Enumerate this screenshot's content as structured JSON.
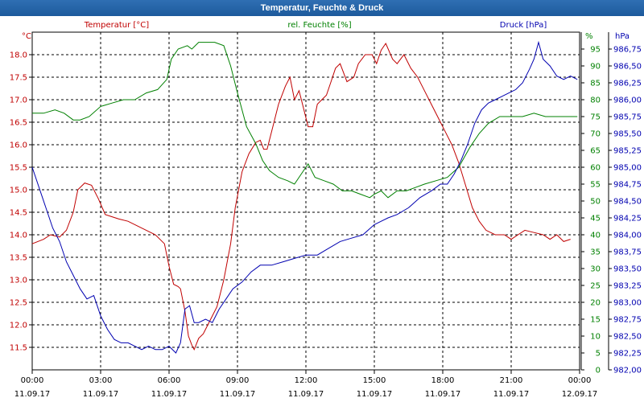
{
  "window": {
    "title": "Temperatur, Feuchte & Druck"
  },
  "chart_data": {
    "type": "line",
    "title": "Temperatur, Feuchte & Druck",
    "legend": [
      {
        "name": "Temperatur [°C]",
        "color": "#c00000"
      },
      {
        "name": "rel. Feuchte [%]",
        "color": "#008000"
      },
      {
        "name": "Druck [hPa]",
        "color": "#0000b0"
      }
    ],
    "grid": true,
    "x": {
      "range": [
        0,
        24
      ],
      "ticks": [
        0,
        3,
        6,
        9,
        12,
        15,
        18,
        21,
        24
      ],
      "time_labels": [
        "00:00",
        "03:00",
        "06:00",
        "09:00",
        "12:00",
        "15:00",
        "18:00",
        "21:00",
        "00:00"
      ],
      "date_labels": [
        "11.09.17",
        "11.09.17",
        "11.09.17",
        "11.09.17",
        "11.09.17",
        "11.09.17",
        "11.09.17",
        "11.09.17",
        "12.09.17"
      ]
    },
    "axes": {
      "temperature": {
        "unit": "°C",
        "color": "#c00000",
        "range": [
          11.0,
          18.5
        ],
        "ticks": [
          "11.5",
          "12.0",
          "12.5",
          "13.0",
          "13.5",
          "14.0",
          "14.5",
          "15.0",
          "15.5",
          "16.0",
          "16.5",
          "17.0",
          "17.5",
          "18.0"
        ]
      },
      "humidity": {
        "unit": "%",
        "color": "#008000",
        "range": [
          0,
          100
        ],
        "ticks": [
          "0",
          "5",
          "10",
          "15",
          "20",
          "25",
          "30",
          "35",
          "40",
          "45",
          "50",
          "55",
          "60",
          "65",
          "70",
          "75",
          "80",
          "85",
          "90",
          "95"
        ]
      },
      "pressure": {
        "unit": "hPa",
        "color": "#0000b0",
        "range": [
          982.0,
          987.0
        ],
        "ticks": [
          "982,00",
          "982,25",
          "982,50",
          "982,75",
          "983,00",
          "983,25",
          "983,50",
          "983,75",
          "984,00",
          "984,25",
          "984,50",
          "984,75",
          "985,00",
          "985,25",
          "985,50",
          "985,75",
          "986,00",
          "986,25",
          "986,50",
          "986,75"
        ]
      }
    },
    "series": [
      {
        "name": "Temperatur [°C]",
        "axis": "temperature",
        "color": "#c00000",
        "points": [
          [
            0,
            13.8
          ],
          [
            0.5,
            13.9
          ],
          [
            0.8,
            14.0
          ],
          [
            1.2,
            13.95
          ],
          [
            1.5,
            14.1
          ],
          [
            1.8,
            14.5
          ],
          [
            2.0,
            15.0
          ],
          [
            2.3,
            15.15
          ],
          [
            2.6,
            15.1
          ],
          [
            2.9,
            14.8
          ],
          [
            3.2,
            14.45
          ],
          [
            3.5,
            14.4
          ],
          [
            3.8,
            14.35
          ],
          [
            4.2,
            14.3
          ],
          [
            4.6,
            14.2
          ],
          [
            5.0,
            14.1
          ],
          [
            5.4,
            14.0
          ],
          [
            5.8,
            13.8
          ],
          [
            6.0,
            13.3
          ],
          [
            6.2,
            12.9
          ],
          [
            6.4,
            12.85
          ],
          [
            6.5,
            12.8
          ],
          [
            6.7,
            12.3
          ],
          [
            6.85,
            11.75
          ],
          [
            7.0,
            11.55
          ],
          [
            7.1,
            11.45
          ],
          [
            7.3,
            11.7
          ],
          [
            7.5,
            11.8
          ],
          [
            7.8,
            12.1
          ],
          [
            8.1,
            12.4
          ],
          [
            8.4,
            13.0
          ],
          [
            8.7,
            13.8
          ],
          [
            8.9,
            14.6
          ],
          [
            9.2,
            15.4
          ],
          [
            9.5,
            15.8
          ],
          [
            9.8,
            16.05
          ],
          [
            10.0,
            16.1
          ],
          [
            10.15,
            15.9
          ],
          [
            10.3,
            15.9
          ],
          [
            10.5,
            16.3
          ],
          [
            10.8,
            16.9
          ],
          [
            11.1,
            17.3
          ],
          [
            11.3,
            17.5
          ],
          [
            11.5,
            17.0
          ],
          [
            11.7,
            17.2
          ],
          [
            11.9,
            16.8
          ],
          [
            12.1,
            16.4
          ],
          [
            12.3,
            16.4
          ],
          [
            12.5,
            16.9
          ],
          [
            12.7,
            17.0
          ],
          [
            12.9,
            17.1
          ],
          [
            13.1,
            17.4
          ],
          [
            13.3,
            17.7
          ],
          [
            13.5,
            17.8
          ],
          [
            13.8,
            17.4
          ],
          [
            14.1,
            17.5
          ],
          [
            14.3,
            17.8
          ],
          [
            14.6,
            18.0
          ],
          [
            14.9,
            18.0
          ],
          [
            15.1,
            17.8
          ],
          [
            15.3,
            18.1
          ],
          [
            15.5,
            18.25
          ],
          [
            15.8,
            17.9
          ],
          [
            16.0,
            17.8
          ],
          [
            16.3,
            18.0
          ],
          [
            16.6,
            17.7
          ],
          [
            16.9,
            17.5
          ],
          [
            17.2,
            17.2
          ],
          [
            17.5,
            16.9
          ],
          [
            17.8,
            16.6
          ],
          [
            18.1,
            16.3
          ],
          [
            18.4,
            16.0
          ],
          [
            18.7,
            15.6
          ],
          [
            19.0,
            15.1
          ],
          [
            19.3,
            14.6
          ],
          [
            19.6,
            14.3
          ],
          [
            19.9,
            14.1
          ],
          [
            20.3,
            14.0
          ],
          [
            20.7,
            14.0
          ],
          [
            21.0,
            13.9
          ],
          [
            21.3,
            14.0
          ],
          [
            21.6,
            14.1
          ],
          [
            22.0,
            14.05
          ],
          [
            22.4,
            14.0
          ],
          [
            22.7,
            13.9
          ],
          [
            23.0,
            14.0
          ],
          [
            23.3,
            13.85
          ],
          [
            23.6,
            13.9
          ]
        ]
      },
      {
        "name": "rel. Feuchte [%]",
        "axis": "humidity",
        "color": "#008000",
        "points": [
          [
            0,
            76
          ],
          [
            0.5,
            76
          ],
          [
            1.0,
            77
          ],
          [
            1.4,
            76
          ],
          [
            1.8,
            74
          ],
          [
            2.1,
            74
          ],
          [
            2.5,
            75
          ],
          [
            3.0,
            78
          ],
          [
            3.5,
            79
          ],
          [
            4.0,
            80
          ],
          [
            4.5,
            80
          ],
          [
            5.0,
            82
          ],
          [
            5.5,
            83
          ],
          [
            5.9,
            86
          ],
          [
            6.1,
            92
          ],
          [
            6.4,
            95
          ],
          [
            6.8,
            96
          ],
          [
            7.0,
            95
          ],
          [
            7.3,
            97
          ],
          [
            7.7,
            97
          ],
          [
            8.0,
            97
          ],
          [
            8.4,
            96
          ],
          [
            8.7,
            90
          ],
          [
            9.0,
            82
          ],
          [
            9.4,
            72
          ],
          [
            9.8,
            67
          ],
          [
            10.1,
            62
          ],
          [
            10.4,
            59
          ],
          [
            10.8,
            57
          ],
          [
            11.2,
            56
          ],
          [
            11.5,
            55
          ],
          [
            11.8,
            58
          ],
          [
            12.1,
            61
          ],
          [
            12.4,
            57
          ],
          [
            12.8,
            56
          ],
          [
            13.2,
            55
          ],
          [
            13.6,
            53
          ],
          [
            14.0,
            53
          ],
          [
            14.4,
            52
          ],
          [
            14.8,
            51
          ],
          [
            15.0,
            52
          ],
          [
            15.3,
            53
          ],
          [
            15.6,
            51
          ],
          [
            16.0,
            53
          ],
          [
            16.4,
            53
          ],
          [
            16.8,
            54
          ],
          [
            17.2,
            55
          ],
          [
            17.7,
            56
          ],
          [
            18.2,
            57
          ],
          [
            18.7,
            60
          ],
          [
            19.2,
            66
          ],
          [
            19.6,
            70
          ],
          [
            20.0,
            73
          ],
          [
            20.5,
            75
          ],
          [
            21.0,
            75
          ],
          [
            21.5,
            75
          ],
          [
            22.0,
            76
          ],
          [
            22.5,
            75
          ],
          [
            23.0,
            75
          ],
          [
            23.5,
            75
          ],
          [
            23.9,
            75
          ]
        ]
      },
      {
        "name": "Druck [hPa]",
        "axis": "pressure",
        "color": "#0000b0",
        "points": [
          [
            0,
            985.0
          ],
          [
            0.3,
            984.7
          ],
          [
            0.6,
            984.4
          ],
          [
            0.9,
            984.1
          ],
          [
            1.2,
            983.9
          ],
          [
            1.5,
            983.6
          ],
          [
            1.8,
            983.4
          ],
          [
            2.1,
            983.2
          ],
          [
            2.4,
            983.05
          ],
          [
            2.7,
            983.1
          ],
          [
            3.0,
            982.8
          ],
          [
            3.3,
            982.6
          ],
          [
            3.6,
            982.45
          ],
          [
            3.9,
            982.4
          ],
          [
            4.2,
            982.4
          ],
          [
            4.5,
            982.35
          ],
          [
            4.8,
            982.3
          ],
          [
            5.1,
            982.35
          ],
          [
            5.4,
            982.3
          ],
          [
            5.7,
            982.3
          ],
          [
            6.0,
            982.35
          ],
          [
            6.3,
            982.25
          ],
          [
            6.5,
            982.4
          ],
          [
            6.7,
            982.9
          ],
          [
            6.9,
            982.95
          ],
          [
            7.1,
            982.7
          ],
          [
            7.3,
            982.7
          ],
          [
            7.6,
            982.75
          ],
          [
            7.9,
            982.7
          ],
          [
            8.2,
            982.9
          ],
          [
            8.5,
            983.05
          ],
          [
            8.8,
            983.2
          ],
          [
            9.2,
            983.3
          ],
          [
            9.6,
            983.45
          ],
          [
            10.0,
            983.55
          ],
          [
            10.5,
            983.55
          ],
          [
            11.0,
            983.6
          ],
          [
            11.5,
            983.65
          ],
          [
            12.0,
            983.7
          ],
          [
            12.5,
            983.7
          ],
          [
            13.0,
            983.8
          ],
          [
            13.5,
            983.9
          ],
          [
            14.0,
            983.95
          ],
          [
            14.5,
            984.0
          ],
          [
            15.0,
            984.15
          ],
          [
            15.3,
            984.2
          ],
          [
            15.6,
            984.25
          ],
          [
            16.0,
            984.3
          ],
          [
            16.5,
            984.4
          ],
          [
            17.0,
            984.55
          ],
          [
            17.5,
            984.65
          ],
          [
            17.9,
            984.75
          ],
          [
            18.2,
            984.75
          ],
          [
            18.5,
            984.9
          ],
          [
            18.8,
            985.1
          ],
          [
            19.1,
            985.35
          ],
          [
            19.4,
            985.65
          ],
          [
            19.7,
            985.85
          ],
          [
            20.0,
            985.95
          ],
          [
            20.3,
            986.0
          ],
          [
            20.6,
            986.05
          ],
          [
            20.9,
            986.1
          ],
          [
            21.2,
            986.15
          ],
          [
            21.5,
            986.25
          ],
          [
            21.8,
            986.45
          ],
          [
            22.0,
            986.6
          ],
          [
            22.2,
            986.85
          ],
          [
            22.4,
            986.6
          ],
          [
            22.7,
            986.5
          ],
          [
            23.0,
            986.35
          ],
          [
            23.3,
            986.3
          ],
          [
            23.6,
            986.35
          ],
          [
            23.9,
            986.3
          ]
        ]
      }
    ]
  }
}
